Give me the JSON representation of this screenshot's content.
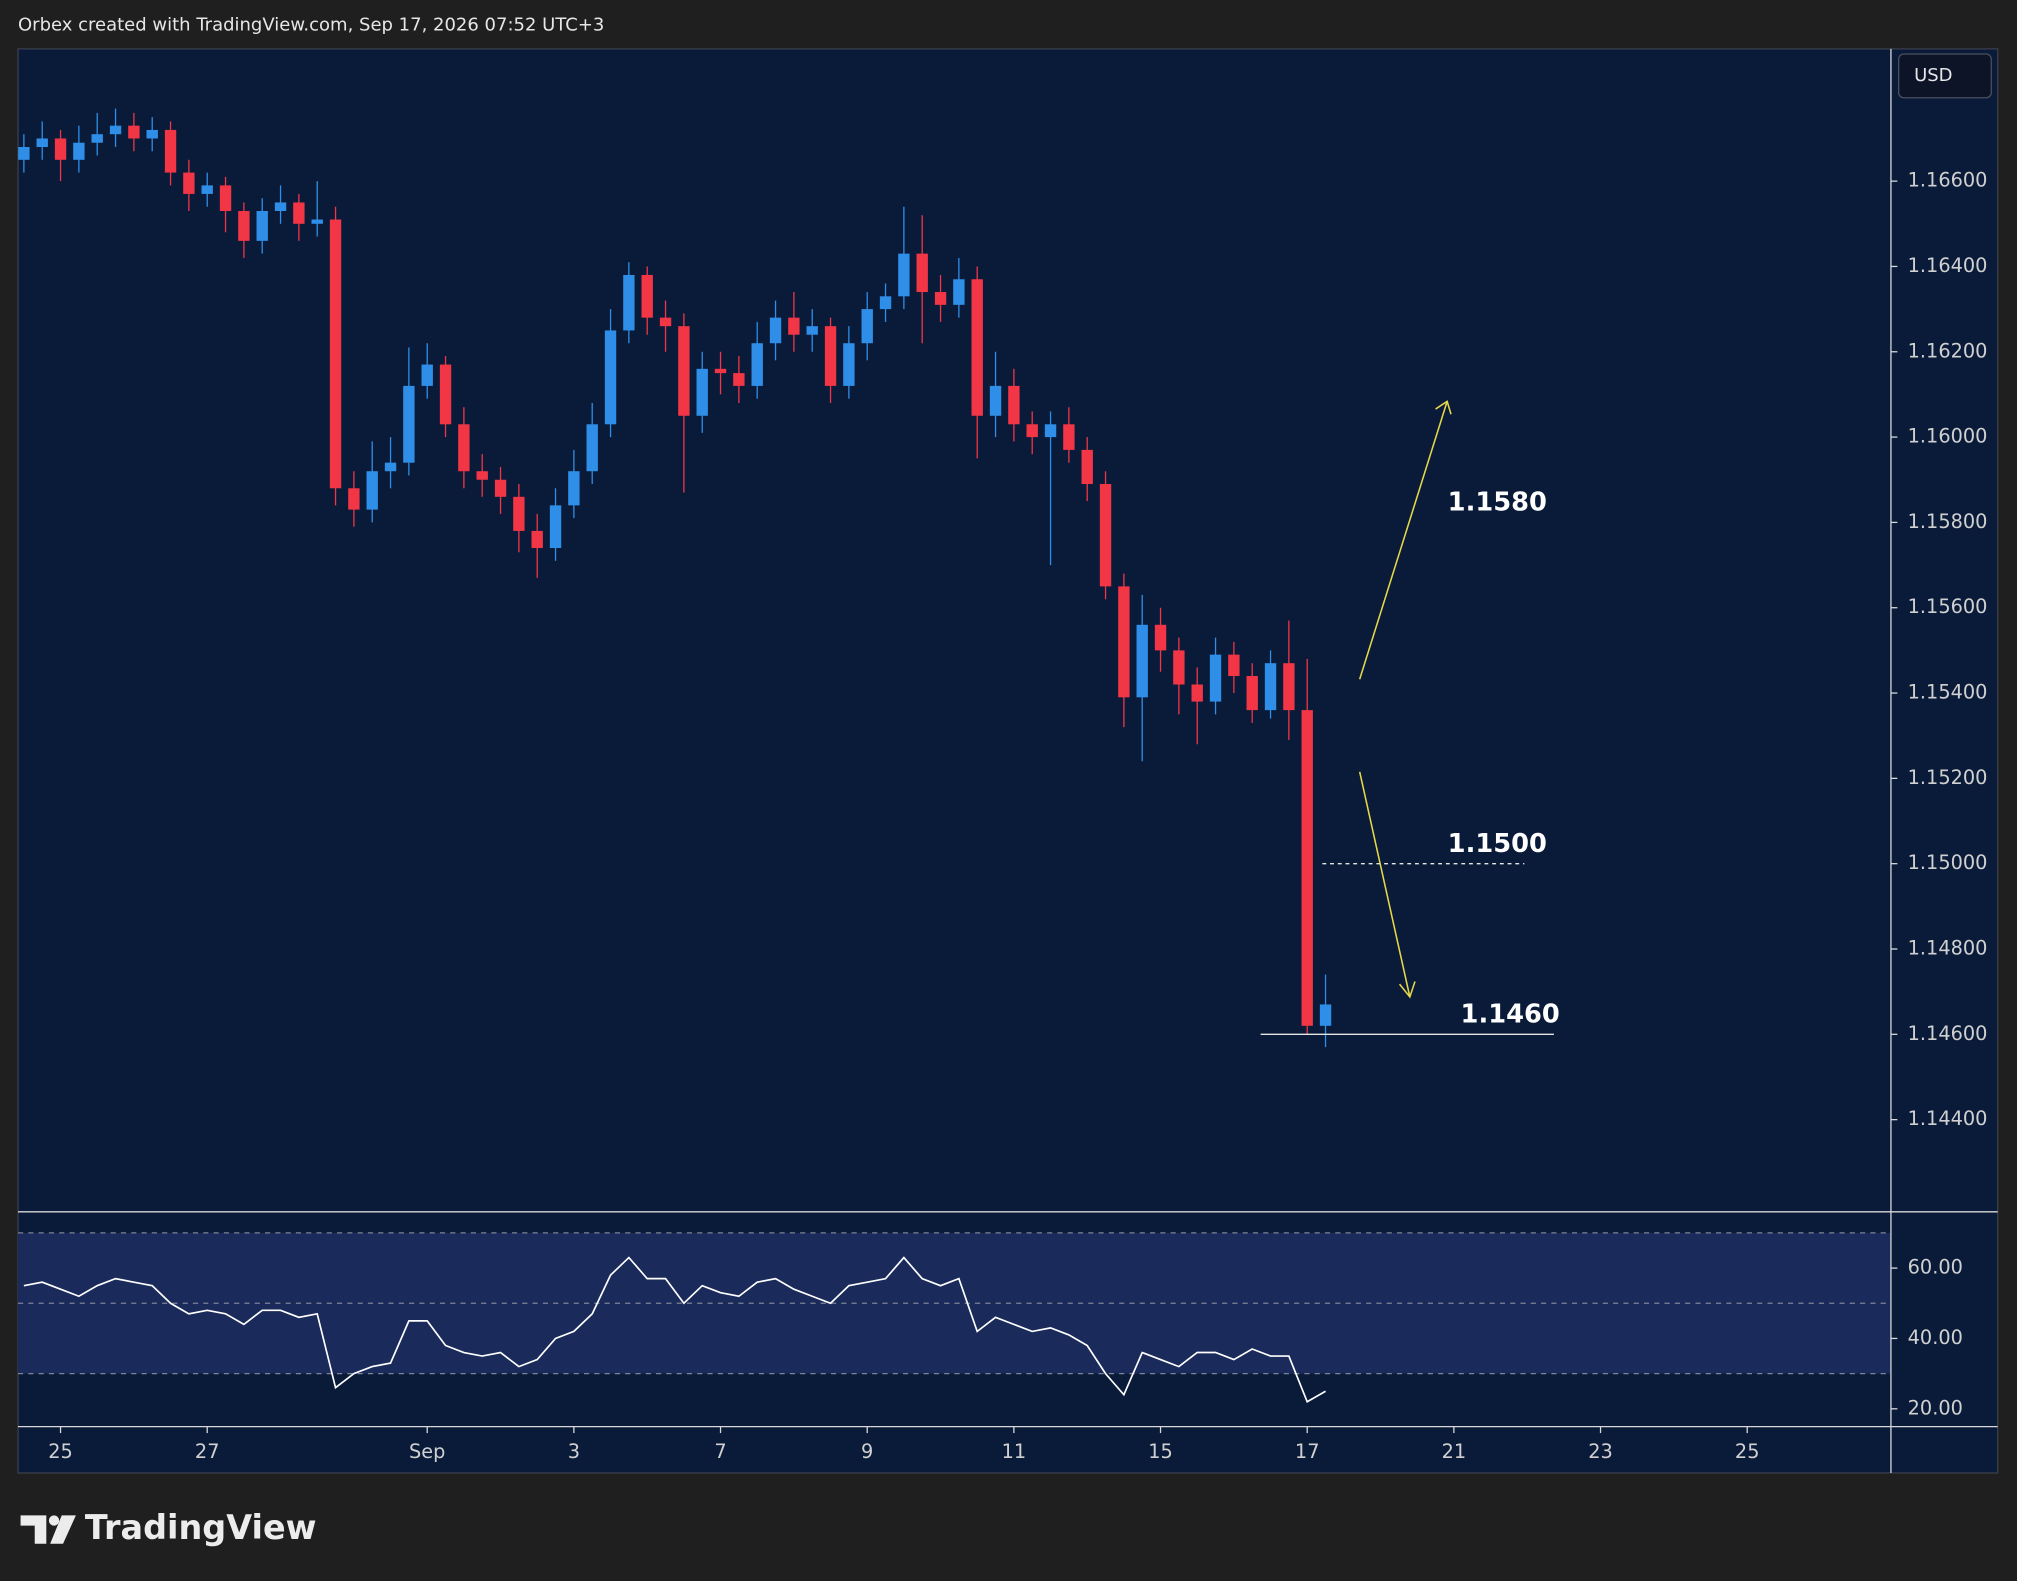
{
  "header": "Orbex created with TradingView.com, Sep 17, 2026 07:52 UTC+3",
  "brand": "TradingView",
  "chart_data": [
    {
      "type": "candlestick",
      "unit_label": "USD",
      "up_color": "#2f8fe8",
      "down_color": "#f23645",
      "xlim": [
        -0.58,
        24.96
      ],
      "ylim": [
        1.1419,
        1.1691
      ],
      "yticks": [
        {
          "value": 1.144,
          "label": "1.14400"
        },
        {
          "value": 1.146,
          "label": "1.14600"
        },
        {
          "value": 1.148,
          "label": "1.14800"
        },
        {
          "value": 1.15,
          "label": "1.15000"
        },
        {
          "value": 1.152,
          "label": "1.15200"
        },
        {
          "value": 1.154,
          "label": "1.15400"
        },
        {
          "value": 1.156,
          "label": "1.15600"
        },
        {
          "value": 1.158,
          "label": "1.15800"
        },
        {
          "value": 1.16,
          "label": "1.16000"
        },
        {
          "value": 1.162,
          "label": "1.16200"
        },
        {
          "value": 1.164,
          "label": "1.16400"
        },
        {
          "value": 1.166,
          "label": "1.16600"
        }
      ],
      "annotations": [
        {
          "text": "1.1580",
          "value": 1.158,
          "line": "none"
        },
        {
          "text": "1.1500",
          "value": 1.15,
          "line": "dashed"
        },
        {
          "text": "1.1460",
          "value": 1.146,
          "line": "solid"
        }
      ],
      "x": [
        -0.5,
        -0.25,
        0,
        0.25,
        0.5,
        0.75,
        1,
        1.25,
        1.5,
        1.75,
        2,
        2.25,
        2.5,
        2.75,
        3,
        3.25,
        3.5,
        3.75,
        4,
        4.25,
        4.5,
        4.75,
        5,
        5.25,
        5.5,
        5.75,
        6,
        6.25,
        6.5,
        6.75,
        7,
        7.25,
        7.5,
        7.75,
        8,
        8.25,
        8.5,
        8.75,
        9,
        9.25,
        9.5,
        9.75,
        10,
        10.25,
        10.5,
        10.75,
        11,
        11.25,
        11.5,
        11.75,
        12,
        12.25,
        12.5,
        12.75,
        13,
        13.25,
        13.5,
        13.75,
        14,
        14.25,
        14.5,
        14.75,
        15,
        15.25,
        15.5,
        15.75,
        16,
        16.25,
        16.5,
        16.75,
        17,
        17.25
      ],
      "open": [
        1.1665,
        1.1668,
        1.167,
        1.1665,
        1.1669,
        1.1671,
        1.1673,
        1.167,
        1.1672,
        1.1662,
        1.1657,
        1.1659,
        1.1653,
        1.1646,
        1.1653,
        1.1655,
        1.165,
        1.1651,
        1.1588,
        1.1583,
        1.1592,
        1.1594,
        1.1612,
        1.1617,
        1.1603,
        1.1592,
        1.159,
        1.1586,
        1.1578,
        1.1574,
        1.1584,
        1.1592,
        1.1603,
        1.1625,
        1.1638,
        1.1628,
        1.1626,
        1.1605,
        1.1616,
        1.1615,
        1.1612,
        1.1622,
        1.1628,
        1.1624,
        1.1626,
        1.1612,
        1.1622,
        1.163,
        1.1633,
        1.1643,
        1.1634,
        1.1631,
        1.1637,
        1.1605,
        1.1612,
        1.1603,
        1.16,
        1.1603,
        1.1597,
        1.1589,
        1.1565,
        1.1539,
        1.1556,
        1.155,
        1.1542,
        1.1538,
        1.1549,
        1.1544,
        1.1536,
        1.1547,
        1.1536,
        1.1462
      ],
      "high": [
        1.1671,
        1.1674,
        1.1672,
        1.1673,
        1.1676,
        1.1677,
        1.1676,
        1.1675,
        1.1674,
        1.1665,
        1.1662,
        1.1661,
        1.1655,
        1.1656,
        1.1659,
        1.1657,
        1.166,
        1.1654,
        1.1592,
        1.1599,
        1.16,
        1.1621,
        1.1622,
        1.1619,
        1.1607,
        1.1596,
        1.1593,
        1.1589,
        1.1582,
        1.1588,
        1.1597,
        1.1608,
        1.163,
        1.1641,
        1.164,
        1.1632,
        1.1629,
        1.162,
        1.162,
        1.1619,
        1.1627,
        1.1632,
        1.1634,
        1.163,
        1.1628,
        1.1626,
        1.1634,
        1.1636,
        1.1654,
        1.1652,
        1.1638,
        1.1642,
        1.164,
        1.162,
        1.1616,
        1.1606,
        1.1606,
        1.1607,
        1.16,
        1.1592,
        1.1568,
        1.1563,
        1.156,
        1.1553,
        1.1546,
        1.1553,
        1.1552,
        1.1547,
        1.155,
        1.1557,
        1.1548,
        1.1474
      ],
      "low": [
        1.1662,
        1.1665,
        1.166,
        1.1662,
        1.1666,
        1.1668,
        1.1667,
        1.1667,
        1.1659,
        1.1653,
        1.1654,
        1.1648,
        1.1642,
        1.1643,
        1.165,
        1.1646,
        1.1647,
        1.1584,
        1.1579,
        1.158,
        1.1588,
        1.1591,
        1.1609,
        1.16,
        1.1588,
        1.1586,
        1.1582,
        1.1573,
        1.1567,
        1.1571,
        1.1581,
        1.1589,
        1.16,
        1.1622,
        1.1624,
        1.162,
        1.1587,
        1.1601,
        1.161,
        1.1608,
        1.1609,
        1.1618,
        1.162,
        1.162,
        1.1608,
        1.1609,
        1.1618,
        1.1627,
        1.163,
        1.1622,
        1.1627,
        1.1628,
        1.1595,
        1.16,
        1.1599,
        1.1596,
        1.157,
        1.1594,
        1.1585,
        1.1562,
        1.1532,
        1.1524,
        1.1545,
        1.1535,
        1.1528,
        1.1535,
        1.154,
        1.1533,
        1.1534,
        1.1529,
        1.146,
        1.1457
      ],
      "close": [
        1.1668,
        1.167,
        1.1665,
        1.1669,
        1.1671,
        1.1673,
        1.167,
        1.1672,
        1.1662,
        1.1657,
        1.1659,
        1.1653,
        1.1646,
        1.1653,
        1.1655,
        1.165,
        1.1651,
        1.1588,
        1.1583,
        1.1592,
        1.1594,
        1.1612,
        1.1617,
        1.1603,
        1.1592,
        1.159,
        1.1586,
        1.1578,
        1.1574,
        1.1584,
        1.1592,
        1.1603,
        1.1625,
        1.1638,
        1.1628,
        1.1626,
        1.1605,
        1.1616,
        1.1615,
        1.1612,
        1.1622,
        1.1628,
        1.1624,
        1.1626,
        1.1612,
        1.1622,
        1.163,
        1.1633,
        1.1643,
        1.1634,
        1.1631,
        1.1637,
        1.1605,
        1.1612,
        1.1603,
        1.16,
        1.1603,
        1.1597,
        1.1589,
        1.1565,
        1.1539,
        1.1556,
        1.155,
        1.1542,
        1.1538,
        1.1549,
        1.1544,
        1.1536,
        1.1547,
        1.1536,
        1.1462,
        1.1467
      ]
    },
    {
      "type": "line",
      "color": "#ffffff",
      "band_color": "#1a2a5a",
      "xlim": [
        -0.58,
        24.96
      ],
      "ylim": [
        15.3,
        76
      ],
      "yticks": [
        {
          "value": 20,
          "label": "20.00"
        },
        {
          "value": 40,
          "label": "40.00"
        },
        {
          "value": 60,
          "label": "60.00"
        }
      ],
      "levels": [
        70,
        50,
        30
      ],
      "xticks": [
        {
          "value": 0,
          "label": "25"
        },
        {
          "value": 2,
          "label": "27"
        },
        {
          "value": 5,
          "label": "Sep"
        },
        {
          "value": 7,
          "label": "3"
        },
        {
          "value": 9,
          "label": "7"
        },
        {
          "value": 11,
          "label": "9"
        },
        {
          "value": 13,
          "label": "11"
        },
        {
          "value": 15,
          "label": "15"
        },
        {
          "value": 17,
          "label": "17"
        },
        {
          "value": 19,
          "label": "21"
        },
        {
          "value": 21,
          "label": "23"
        },
        {
          "value": 23,
          "label": "25"
        }
      ],
      "x": [
        -0.5,
        -0.25,
        0,
        0.25,
        0.5,
        0.75,
        1,
        1.25,
        1.5,
        1.75,
        2,
        2.25,
        2.5,
        2.75,
        3,
        3.25,
        3.5,
        3.75,
        4,
        4.25,
        4.5,
        4.75,
        5,
        5.25,
        5.5,
        5.75,
        6,
        6.25,
        6.5,
        6.75,
        7,
        7.25,
        7.5,
        7.75,
        8,
        8.25,
        8.5,
        8.75,
        9,
        9.25,
        9.5,
        9.75,
        10,
        10.25,
        10.5,
        10.75,
        11,
        11.25,
        11.5,
        11.75,
        12,
        12.25,
        12.5,
        12.75,
        13,
        13.25,
        13.5,
        13.75,
        14,
        14.25,
        14.5,
        14.75,
        15,
        15.25,
        15.5,
        15.75,
        16,
        16.25,
        16.5,
        16.75,
        17,
        17.25
      ],
      "values": [
        55,
        56,
        54,
        52,
        55,
        57,
        56,
        55,
        50,
        47,
        48,
        47,
        44,
        48,
        48,
        46,
        47,
        26,
        30,
        32,
        33,
        45,
        45,
        38,
        36,
        35,
        36,
        32,
        34,
        40,
        42,
        47,
        58,
        63,
        57,
        57,
        50,
        55,
        53,
        52,
        56,
        57,
        54,
        52,
        50,
        55,
        56,
        57,
        63,
        57,
        55,
        57,
        42,
        46,
        44,
        42,
        43,
        41,
        38,
        30,
        24,
        36,
        34,
        32,
        36,
        36,
        34,
        37,
        35,
        35,
        22,
        25
      ]
    }
  ]
}
